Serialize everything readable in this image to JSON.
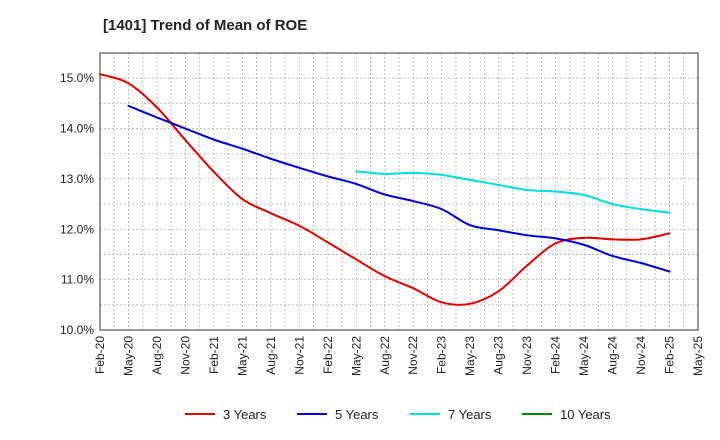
{
  "chart_data": {
    "type": "line",
    "title": "[1401]  Trend of Mean of ROE",
    "xlabel": "",
    "ylabel": "",
    "categories": [
      "Feb-20",
      "May-20",
      "Aug-20",
      "Nov-20",
      "Feb-21",
      "May-21",
      "Aug-21",
      "Nov-21",
      "Feb-22",
      "May-22",
      "Aug-22",
      "Nov-22",
      "Feb-23",
      "May-23",
      "Aug-23",
      "Nov-23",
      "Feb-24",
      "May-24",
      "Aug-24",
      "Nov-24",
      "Feb-25",
      "May-25"
    ],
    "y_ticks": [
      "10.0%",
      "11.0%",
      "12.0%",
      "13.0%",
      "14.0%",
      "15.0%"
    ],
    "ylim": [
      10.0,
      15.5
    ],
    "grid": true,
    "legend_position": "bottom",
    "series": [
      {
        "name": "3 Years",
        "color": "#dd0000",
        "values": [
          15.08,
          14.9,
          14.42,
          13.77,
          13.14,
          12.6,
          12.32,
          12.07,
          11.74,
          11.4,
          11.07,
          10.83,
          10.55,
          10.52,
          10.77,
          11.28,
          11.72,
          11.83,
          11.8,
          11.8,
          11.92,
          null
        ]
      },
      {
        "name": "5 Years",
        "color": "#0000cc",
        "values": [
          null,
          14.45,
          14.22,
          14.0,
          13.78,
          13.6,
          13.4,
          13.22,
          13.05,
          12.9,
          12.69,
          12.56,
          12.4,
          12.08,
          11.98,
          11.88,
          11.82,
          11.69,
          11.47,
          11.33,
          11.16,
          null
        ]
      },
      {
        "name": "7 Years",
        "color": "#00dddd",
        "values": [
          null,
          null,
          null,
          null,
          null,
          null,
          null,
          null,
          null,
          13.15,
          13.1,
          13.12,
          13.08,
          12.98,
          12.88,
          12.78,
          12.75,
          12.68,
          12.5,
          12.4,
          12.33,
          null
        ]
      },
      {
        "name": "10 Years",
        "color": "#008800",
        "values": [
          null,
          null,
          null,
          null,
          null,
          null,
          null,
          null,
          null,
          null,
          null,
          null,
          null,
          null,
          null,
          null,
          null,
          null,
          null,
          null,
          null,
          null
        ]
      }
    ]
  }
}
